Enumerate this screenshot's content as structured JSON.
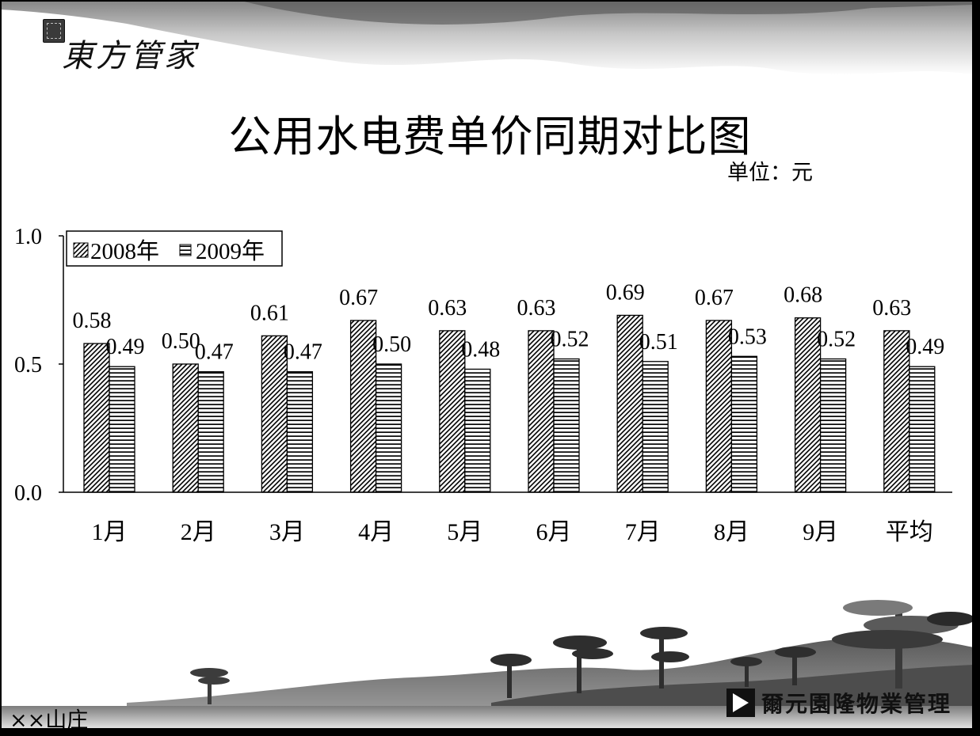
{
  "logo": {
    "text": "東方管家"
  },
  "title": "公用水电费单价同期对比图",
  "unit_label": "单位：元",
  "footer": {
    "left": "××山庄",
    "brand": "爾元園隆物業管理"
  },
  "chart_data": {
    "type": "bar",
    "categories": [
      "1月",
      "2月",
      "3月",
      "4月",
      "5月",
      "6月",
      "7月",
      "8月",
      "9月",
      "平均"
    ],
    "series": [
      {
        "name": "2008年",
        "values": [
          0.58,
          0.5,
          0.61,
          0.67,
          0.63,
          0.63,
          0.69,
          0.67,
          0.68,
          0.63
        ],
        "labels": [
          "0.58",
          "0.50",
          "0.61",
          "0.67",
          "0.63",
          "0.63",
          "0.69",
          "0.67",
          "0.68",
          "0.63"
        ],
        "pattern": "diagonal-hatch"
      },
      {
        "name": "2009年",
        "values": [
          0.49,
          0.47,
          0.47,
          0.5,
          0.48,
          0.52,
          0.51,
          0.53,
          0.52,
          0.49
        ],
        "labels": [
          "0.49",
          "0.47",
          "0.47",
          "0.50",
          "0.48",
          "0.52",
          "0.51",
          "0.53",
          "0.52",
          "0.49"
        ],
        "pattern": "horizontal-lines"
      }
    ],
    "yticks": [
      "0.0",
      "0.5",
      "1.0"
    ],
    "ylim": [
      0,
      1.0
    ],
    "legend_position": "top-left",
    "grid": false
  }
}
